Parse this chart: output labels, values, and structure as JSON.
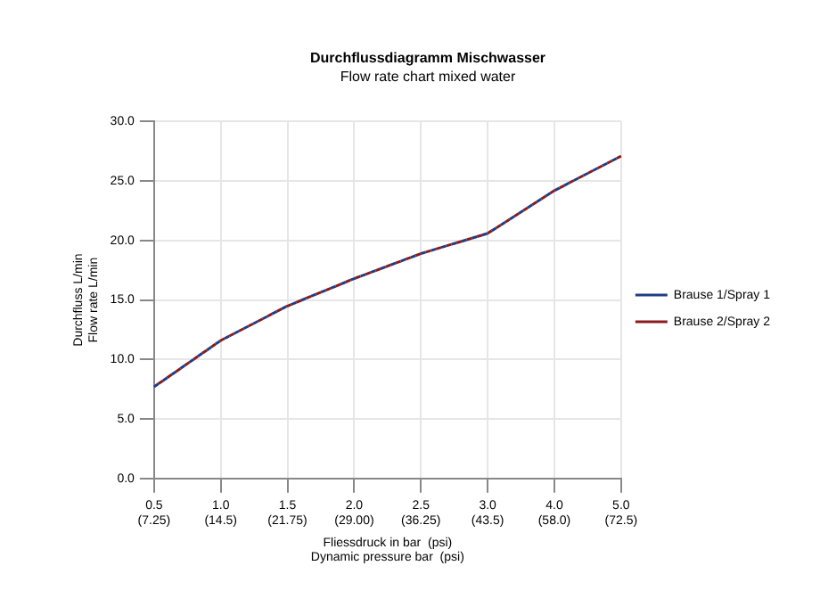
{
  "chart_data": {
    "type": "line",
    "title": "Durchflussdiagramm Mischwasser",
    "subtitle": "Flow rate chart mixed water",
    "xlabel": "Fliessdruck in bar  (psi)\nDynamic pressure bar  (psi)",
    "ylabel": "Durchfluss L/min\nFlow rate L/min",
    "categories": [
      "0.5\n(7.25)",
      "1.0\n(14.5)",
      "1.5\n(21.75)",
      "2.0\n(29.00)",
      "2.5\n(36.25)",
      "3.0\n(43.5)",
      "4.0\n(58.0)",
      "5.0\n(72.5)"
    ],
    "series": [
      {
        "name": "Brause 1/Spray 1",
        "color": "#1f3c88",
        "values": [
          7.7,
          11.6,
          14.5,
          16.8,
          18.9,
          20.6,
          24.2,
          27.1
        ]
      },
      {
        "name": "Brause 2/Spray 2",
        "color": "#8b1a1a",
        "values": [
          7.7,
          11.6,
          14.5,
          16.8,
          18.9,
          20.6,
          24.2,
          27.1
        ]
      }
    ],
    "ylim": [
      0,
      30
    ],
    "yticks": [
      {
        "value": 0,
        "label": "0.0"
      },
      {
        "value": 5,
        "label": "5.0"
      },
      {
        "value": 10,
        "label": "10.0"
      },
      {
        "value": 15,
        "label": "15.0"
      },
      {
        "value": 20,
        "label": "20.0"
      },
      {
        "value": 25,
        "label": "25.0"
      },
      {
        "value": 30,
        "label": "30.0"
      }
    ],
    "grid": true,
    "legend": "right",
    "marker": "none",
    "line_style": "dashed"
  }
}
